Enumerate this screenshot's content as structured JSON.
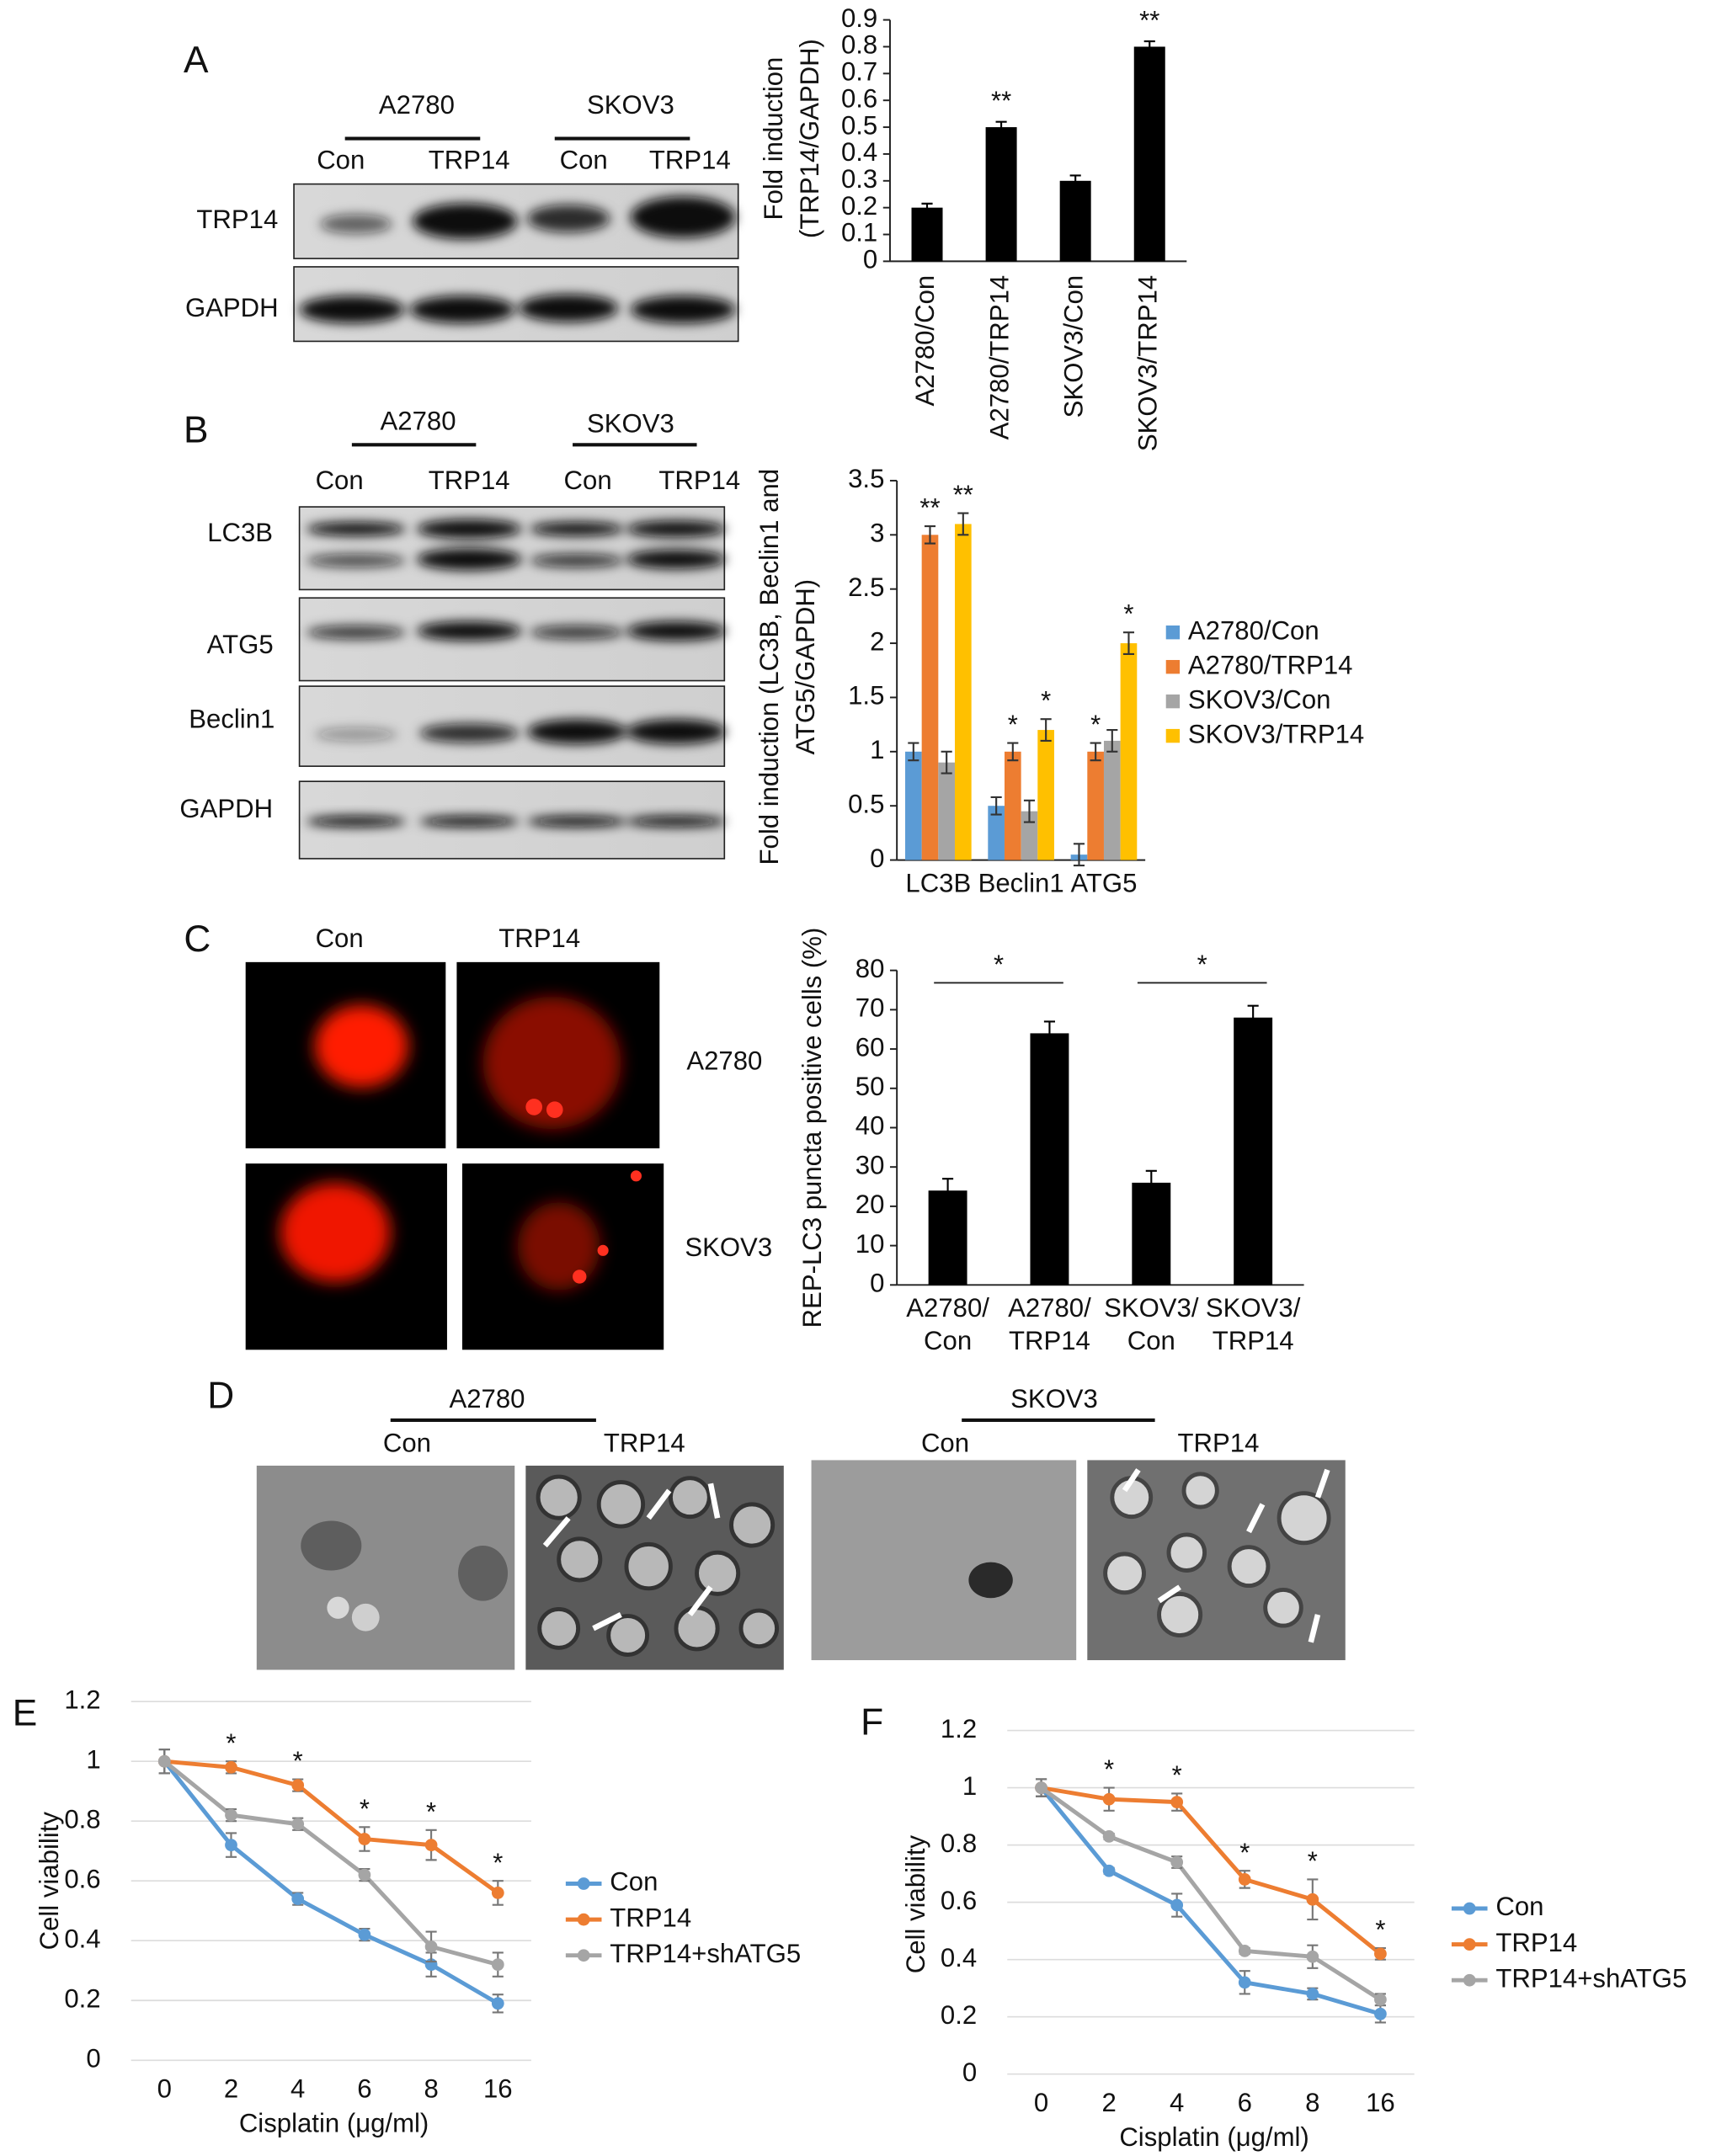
{
  "panels": {
    "A": {
      "letter": "A",
      "cell_lines": [
        "A2780",
        "SKOV3"
      ],
      "lanes": [
        "Con",
        "TRP14",
        "Con",
        "TRP14"
      ],
      "proteins": [
        "TRP14",
        "GAPDH"
      ]
    },
    "B": {
      "letter": "B",
      "cell_lines": [
        "A2780",
        "SKOV3"
      ],
      "lanes": [
        "Con",
        "TRP14",
        "Con",
        "TRP14"
      ],
      "proteins": [
        "LC3B",
        "ATG5",
        "Beclin1",
        "GAPDH"
      ]
    },
    "C": {
      "letter": "C",
      "conditions": [
        "Con",
        "TRP14"
      ],
      "cell_lines": [
        "A2780",
        "SKOV3"
      ]
    },
    "D": {
      "letter": "D",
      "cell_lines": [
        "A2780",
        "SKOV3"
      ],
      "lanes": [
        "Con",
        "TRP14",
        "Con",
        "TRP14"
      ]
    },
    "E": {
      "letter": "E"
    },
    "F": {
      "letter": "F"
    }
  },
  "chart_data": [
    {
      "type": "bar",
      "y_label": [
        "Fold induction",
        "(TRP14/GAPDH)"
      ],
      "categories": [
        "A2780/Con",
        "A2780/TRP14",
        "SKOV3/Con",
        "SKOV3/TRP14"
      ],
      "values": [
        0.2,
        0.5,
        0.3,
        0.8
      ],
      "errors": [
        0.015,
        0.02,
        0.02,
        0.02
      ],
      "significance": [
        null,
        "**",
        null,
        "**"
      ],
      "color": "#000000",
      "ylim": [
        0,
        0.9
      ],
      "yticks": [
        0,
        0.1,
        0.2,
        0.3,
        0.4,
        0.5,
        0.6,
        0.7,
        0.8,
        0.9
      ],
      "grid": false
    },
    {
      "type": "bar",
      "y_label": [
        "Fold induction (LC3B, Beclin1 and",
        "ATG5/GAPDH)"
      ],
      "categories": [
        "LC3B",
        "Beclin1",
        "ATG5"
      ],
      "series": [
        {
          "name": "A2780/Con",
          "color": "#5b9bd5",
          "values": [
            1,
            0.5,
            0.05
          ],
          "errors": [
            0.08,
            0.08,
            0.1
          ]
        },
        {
          "name": "A2780/TRP14",
          "color": "#ed7d31",
          "values": [
            3,
            1,
            1
          ],
          "errors": [
            0.08,
            0.08,
            0.08
          ],
          "significance": [
            "**",
            "*",
            "*"
          ]
        },
        {
          "name": "SKOV3/Con",
          "color": "#a5a5a5",
          "values": [
            0.9,
            0.45,
            1.1
          ],
          "errors": [
            0.1,
            0.1,
            0.1
          ]
        },
        {
          "name": "SKOV3/TRP14",
          "color": "#ffc000",
          "values": [
            3.1,
            1.2,
            2
          ],
          "errors": [
            0.1,
            0.1,
            0.1
          ],
          "significance": [
            "**",
            "*",
            "*"
          ]
        }
      ],
      "ylim": [
        0,
        3.5
      ],
      "yticks": [
        0,
        0.5,
        1,
        1.5,
        2,
        2.5,
        3,
        3.5
      ],
      "grid": false,
      "legend": "right"
    },
    {
      "type": "bar",
      "y_label": "REP-LC3 puncta positive cells (%)",
      "categories": [
        "A2780/\nCon",
        "A2780/\nTRP14",
        "SKOV3/\nCon",
        "SKOV3/\nTRP14"
      ],
      "values": [
        24,
        64,
        26,
        68
      ],
      "errors": [
        3,
        3,
        3,
        3
      ],
      "comparison_labels": [
        "*",
        "*"
      ],
      "color": "#000000",
      "ylim": [
        0,
        80
      ],
      "yticks": [
        0,
        10,
        20,
        30,
        40,
        50,
        60,
        70,
        80
      ],
      "grid": false
    },
    {
      "type": "line",
      "x_label": "Cisplatin (μg/ml)",
      "y_label": "Cell viability",
      "categories": [
        "0",
        "2",
        "4",
        "6",
        "8",
        "16"
      ],
      "series": [
        {
          "name": "Con",
          "color": "#5b9bd5",
          "values": [
            1,
            0.72,
            0.54,
            0.42,
            0.32,
            0.19
          ],
          "errors": [
            0.04,
            0.04,
            0.02,
            0.02,
            0.04,
            0.03
          ]
        },
        {
          "name": "TRP14",
          "color": "#ed7d31",
          "values": [
            1,
            0.98,
            0.92,
            0.74,
            0.72,
            0.56
          ],
          "errors": [
            0.04,
            0.02,
            0.02,
            0.04,
            0.05,
            0.04
          ]
        },
        {
          "name": "TRP14+shATG5",
          "color": "#a5a5a5",
          "values": [
            1,
            0.82,
            0.79,
            0.62,
            0.38,
            0.32
          ],
          "errors": [
            0.04,
            0.02,
            0.02,
            0.02,
            0.05,
            0.04
          ]
        }
      ],
      "significance": [
        null,
        "*",
        "*",
        "*",
        "*",
        "*"
      ],
      "ylim": [
        0,
        1.2
      ],
      "yticks": [
        0,
        0.2,
        0.4,
        0.6,
        0.8,
        1,
        1.2
      ],
      "grid": true,
      "legend": "right"
    },
    {
      "type": "line",
      "x_label": "Cisplatin (μg/ml)",
      "y_label": "Cell viability",
      "categories": [
        "0",
        "2",
        "4",
        "6",
        "8",
        "16"
      ],
      "series": [
        {
          "name": "Con",
          "color": "#5b9bd5",
          "values": [
            1,
            0.71,
            0.59,
            0.32,
            0.28,
            0.21
          ],
          "errors": [
            0.03,
            0.01,
            0.04,
            0.04,
            0.02,
            0.03
          ]
        },
        {
          "name": "TRP14",
          "color": "#ed7d31",
          "values": [
            1,
            0.96,
            0.95,
            0.68,
            0.61,
            0.42
          ],
          "errors": [
            0.03,
            0.04,
            0.03,
            0.03,
            0.07,
            0.02
          ]
        },
        {
          "name": "TRP14+shATG5",
          "color": "#a5a5a5",
          "values": [
            1,
            0.83,
            0.74,
            0.43,
            0.41,
            0.26
          ],
          "errors": [
            0.03,
            0.01,
            0.02,
            0.01,
            0.04,
            0.02
          ]
        }
      ],
      "significance": [
        null,
        "*",
        "*",
        "*",
        "*",
        "*"
      ],
      "ylim": [
        0,
        1.2
      ],
      "yticks": [
        0,
        0.2,
        0.4,
        0.6,
        0.8,
        1,
        1.2
      ],
      "grid": true,
      "legend": "right"
    }
  ]
}
